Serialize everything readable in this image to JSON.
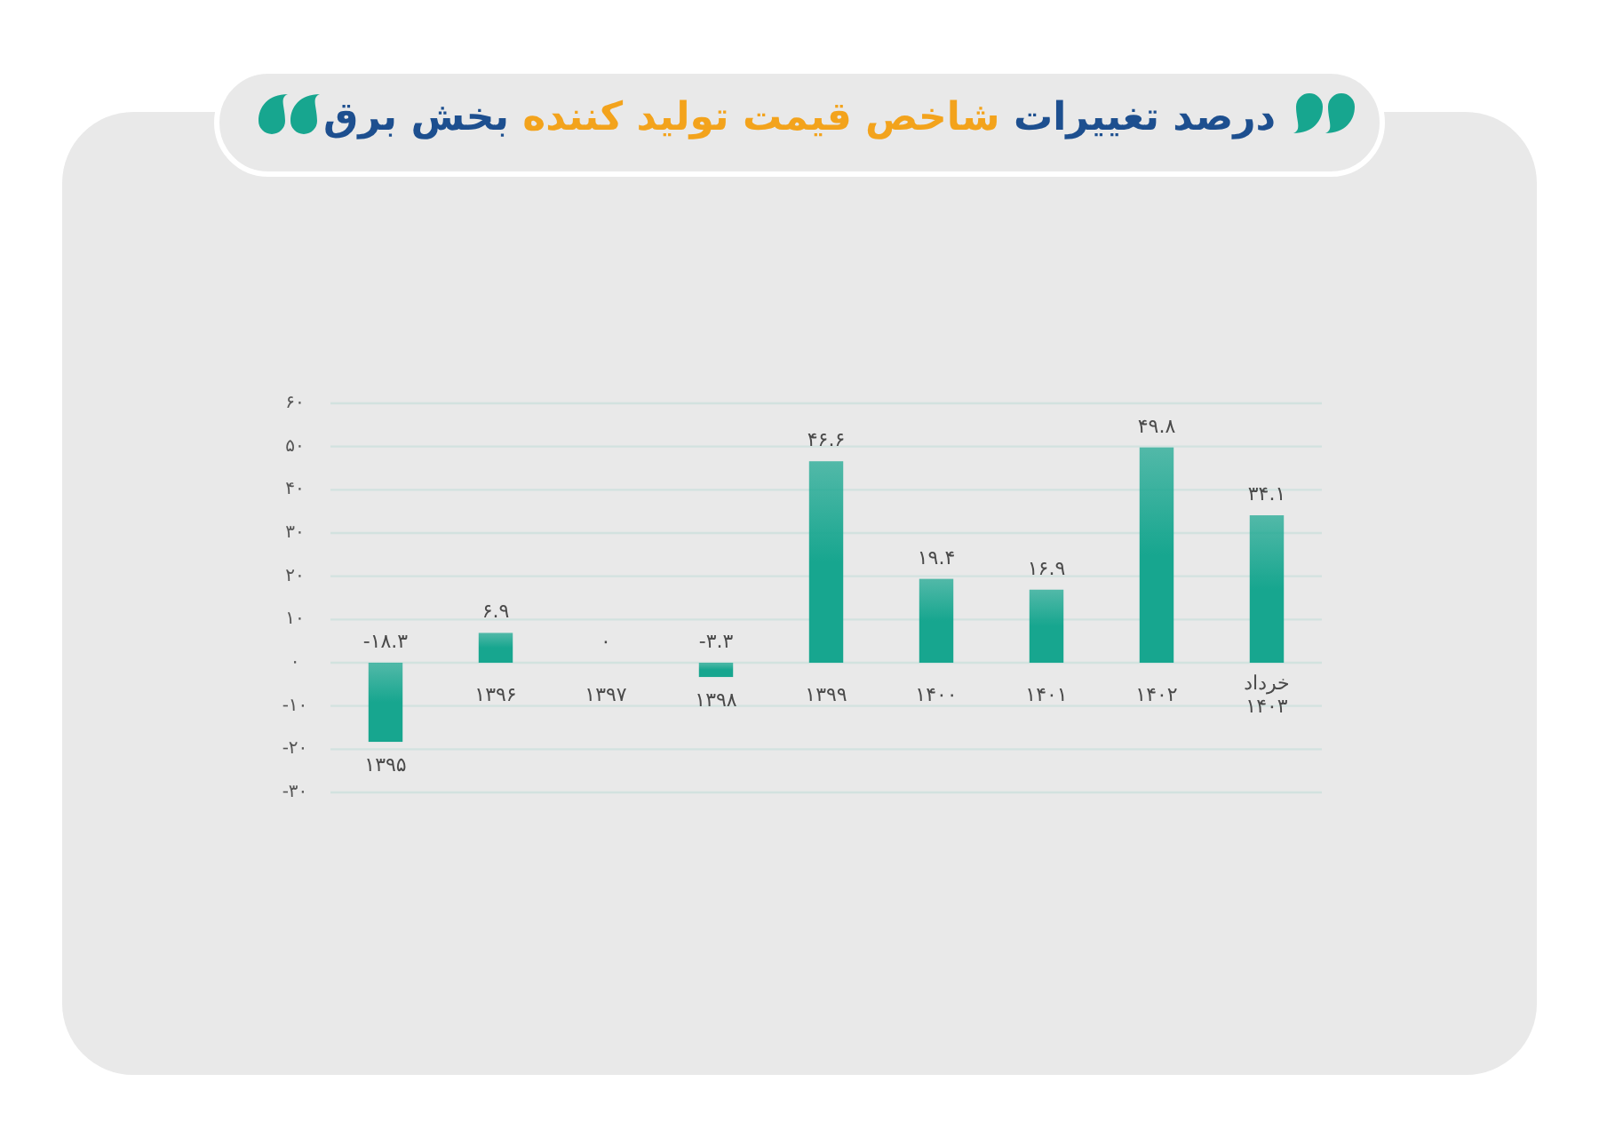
{
  "chart_data": {
    "type": "bar",
    "title": "درصد تغییرات شاخص قیمت تولید کننده بخش برق",
    "categories": [
      "۱۳۹۵",
      "۱۳۹۶",
      "۱۳۹۷",
      "۱۳۹۸",
      "۱۳۹۹",
      "۱۴۰۰",
      "۱۴۰۱",
      "۱۴۰۲",
      "خرداد ۱۴۰۳"
    ],
    "values": [
      -18.3,
      6.9,
      0,
      -3.3,
      46.6,
      19.4,
      16.9,
      49.8,
      34.1
    ],
    "value_labels": [
      "-۱۸.۳",
      "۶.۹",
      "۰",
      "-۳.۳",
      "۴۶.۶",
      "۱۹.۴",
      "۱۶.۹",
      "۴۹.۸",
      "۳۴.۱"
    ],
    "color": "#17a68f",
    "ylim": [
      -30,
      60
    ],
    "yticks": [
      {
        "value": -30,
        "label": "-۳۰"
      },
      {
        "value": -20,
        "label": "-۲۰"
      },
      {
        "value": -10,
        "label": "-۱۰"
      },
      {
        "value": 0,
        "label": "۰"
      },
      {
        "value": 10,
        "label": "۱۰"
      },
      {
        "value": 20,
        "label": "۲۰"
      },
      {
        "value": 30,
        "label": "۳۰"
      },
      {
        "value": 40,
        "label": "۴۰"
      },
      {
        "value": 50,
        "label": "۵۰"
      },
      {
        "value": 60,
        "label": "۶۰"
      }
    ],
    "grid": "y"
  }
}
